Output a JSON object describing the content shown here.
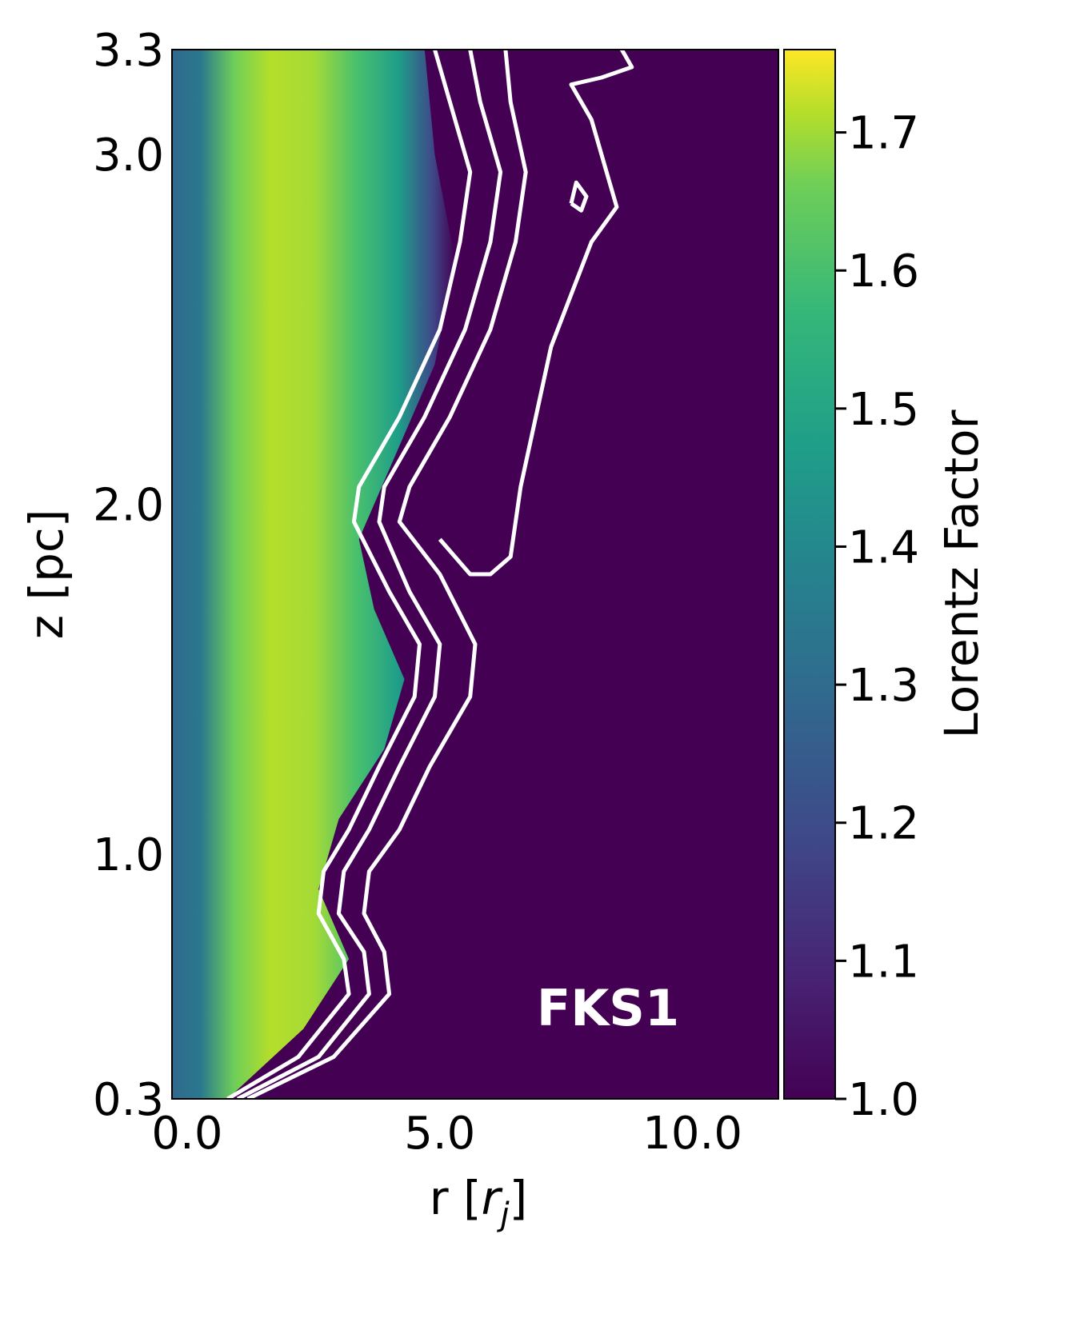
{
  "chart_data": {
    "type": "heatmap",
    "title": "",
    "panel_label": "FKS1",
    "xlabel": "r [r_j]",
    "xlabel_main": "r [",
    "xlabel_italic": "r",
    "xlabel_sub": "j",
    "xlabel_end": "]",
    "ylabel": "z [pc]",
    "xlim": [
      -0.3,
      11.7
    ],
    "ylim": [
      0.3,
      3.3
    ],
    "x_ticks": [
      {
        "value": 0.0,
        "label": "0.0"
      },
      {
        "value": 5.0,
        "label": "5.0"
      },
      {
        "value": 10.0,
        "label": "10.0"
      }
    ],
    "y_ticks": [
      {
        "value": 0.3,
        "label": "0.3"
      },
      {
        "value": 1.0,
        "label": "1.0"
      },
      {
        "value": 2.0,
        "label": "2.0"
      },
      {
        "value": 3.0,
        "label": "3.0"
      },
      {
        "value": 3.3,
        "label": "3.3"
      }
    ],
    "colorbar": {
      "label": "Lorentz Factor",
      "colormap": "viridis",
      "range": [
        1.0,
        1.76
      ],
      "ticks": [
        {
          "value": 1.0,
          "label": "1.0"
        },
        {
          "value": 1.1,
          "label": "1.1"
        },
        {
          "value": 1.2,
          "label": "1.2"
        },
        {
          "value": 1.3,
          "label": "1.3"
        },
        {
          "value": 1.4,
          "label": "1.4"
        },
        {
          "value": 1.5,
          "label": "1.5"
        },
        {
          "value": 1.6,
          "label": "1.6"
        },
        {
          "value": 1.7,
          "label": "1.7"
        }
      ]
    },
    "background_value": 1.0,
    "jet_profile": [
      {
        "z": 0.3,
        "r_edge": 0.8
      },
      {
        "z": 0.5,
        "r_edge": 2.3
      },
      {
        "z": 0.7,
        "r_edge": 3.2
      },
      {
        "z": 0.9,
        "r_edge": 2.6
      },
      {
        "z": 1.1,
        "r_edge": 3.0
      },
      {
        "z": 1.3,
        "r_edge": 3.9
      },
      {
        "z": 1.5,
        "r_edge": 4.3
      },
      {
        "z": 1.7,
        "r_edge": 3.7
      },
      {
        "z": 1.9,
        "r_edge": 3.4
      },
      {
        "z": 2.1,
        "r_edge": 4.0
      },
      {
        "z": 2.4,
        "r_edge": 4.9
      },
      {
        "z": 2.7,
        "r_edge": 5.3
      },
      {
        "z": 3.0,
        "r_edge": 4.9
      },
      {
        "z": 3.3,
        "r_edge": 4.7
      }
    ],
    "contours": [
      {
        "name": "contour-1",
        "points": [
          [
            0.8,
            0.3
          ],
          [
            2.2,
            0.42
          ],
          [
            3.2,
            0.6
          ],
          [
            3.1,
            0.7
          ],
          [
            2.6,
            0.83
          ],
          [
            2.7,
            0.95
          ],
          [
            3.2,
            1.07
          ],
          [
            3.8,
            1.25
          ],
          [
            4.5,
            1.45
          ],
          [
            4.6,
            1.6
          ],
          [
            4.0,
            1.75
          ],
          [
            3.3,
            1.95
          ],
          [
            3.4,
            2.05
          ],
          [
            4.2,
            2.25
          ],
          [
            5.0,
            2.5
          ],
          [
            5.4,
            2.75
          ],
          [
            5.6,
            2.95
          ],
          [
            5.2,
            3.15
          ],
          [
            4.9,
            3.3
          ]
        ]
      },
      {
        "name": "contour-2",
        "points": [
          [
            1.0,
            0.3
          ],
          [
            2.6,
            0.42
          ],
          [
            3.6,
            0.6
          ],
          [
            3.5,
            0.72
          ],
          [
            3.0,
            0.83
          ],
          [
            3.1,
            0.95
          ],
          [
            3.6,
            1.07
          ],
          [
            4.2,
            1.25
          ],
          [
            4.9,
            1.45
          ],
          [
            5.0,
            1.6
          ],
          [
            4.4,
            1.75
          ],
          [
            3.8,
            1.95
          ],
          [
            3.9,
            2.05
          ],
          [
            4.7,
            2.25
          ],
          [
            5.5,
            2.5
          ],
          [
            6.0,
            2.75
          ],
          [
            6.2,
            2.95
          ],
          [
            5.8,
            3.15
          ],
          [
            5.6,
            3.3
          ]
        ]
      },
      {
        "name": "contour-3",
        "points": [
          [
            1.2,
            0.3
          ],
          [
            2.9,
            0.42
          ],
          [
            4.0,
            0.6
          ],
          [
            3.9,
            0.72
          ],
          [
            3.5,
            0.83
          ],
          [
            3.6,
            0.95
          ],
          [
            4.2,
            1.07
          ],
          [
            4.8,
            1.25
          ],
          [
            5.6,
            1.45
          ],
          [
            5.7,
            1.6
          ],
          [
            5.0,
            1.8
          ],
          [
            4.2,
            1.95
          ],
          [
            4.4,
            2.05
          ],
          [
            5.2,
            2.25
          ],
          [
            6.0,
            2.5
          ],
          [
            6.5,
            2.75
          ],
          [
            6.7,
            2.95
          ],
          [
            6.4,
            3.15
          ],
          [
            6.3,
            3.3
          ]
        ]
      },
      {
        "name": "contour-4",
        "points": [
          [
            5.0,
            1.9
          ],
          [
            5.6,
            1.8
          ],
          [
            6.0,
            1.8
          ],
          [
            6.4,
            1.85
          ],
          [
            6.6,
            2.05
          ],
          [
            6.9,
            2.25
          ],
          [
            7.2,
            2.45
          ],
          [
            7.6,
            2.6
          ],
          [
            8.0,
            2.75
          ],
          [
            8.5,
            2.85
          ],
          [
            8.3,
            2.95
          ],
          [
            8.0,
            3.1
          ],
          [
            7.6,
            3.2
          ],
          [
            8.2,
            3.22
          ],
          [
            8.8,
            3.25
          ],
          [
            8.6,
            3.3
          ]
        ]
      },
      {
        "name": "contour-5",
        "points": [
          [
            7.6,
            2.86
          ],
          [
            7.8,
            2.84
          ],
          [
            7.9,
            2.88
          ],
          [
            7.7,
            2.92
          ],
          [
            7.6,
            2.86
          ]
        ]
      }
    ]
  }
}
